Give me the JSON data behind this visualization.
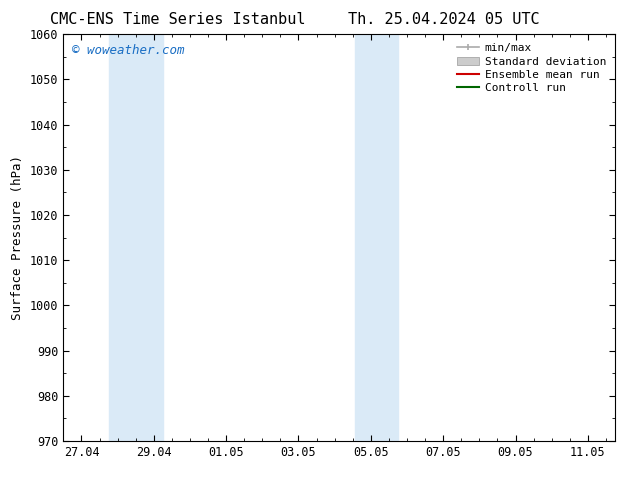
{
  "title_left": "CMC-ENS Time Series Istanbul",
  "title_right": "Th. 25.04.2024 05 UTC",
  "ylabel": "Surface Pressure (hPa)",
  "ylim": [
    970,
    1060
  ],
  "yticks": [
    970,
    980,
    990,
    1000,
    1010,
    1020,
    1030,
    1040,
    1050,
    1060
  ],
  "xtick_labels": [
    "27.04",
    "29.04",
    "01.05",
    "03.05",
    "05.05",
    "07.05",
    "09.05",
    "11.05"
  ],
  "xtick_positions": [
    0,
    2,
    4,
    6,
    8,
    10,
    12,
    14
  ],
  "x_min": -0.5,
  "x_max": 14.75,
  "watermark": "© woweather.com",
  "watermark_color": "#1a6ec4",
  "bg_color": "#ffffff",
  "plot_bg_color": "#ffffff",
  "shaded_bands": [
    {
      "x_start": 0.75,
      "x_end": 2.25,
      "color": "#daeaf7"
    },
    {
      "x_start": 7.55,
      "x_end": 8.75,
      "color": "#daeaf7"
    }
  ],
  "legend_labels": [
    "min/max",
    "Standard deviation",
    "Ensemble mean run",
    "Controll run"
  ],
  "legend_line_color_minmax": "#aaaaaa",
  "legend_fill_color_std": "#cccccc",
  "legend_line_color_ens": "#cc0000",
  "legend_line_color_ctrl": "#006600",
  "title_fontsize": 11,
  "axis_label_fontsize": 9,
  "tick_fontsize": 8.5,
  "legend_fontsize": 8,
  "font_family": "monospace"
}
